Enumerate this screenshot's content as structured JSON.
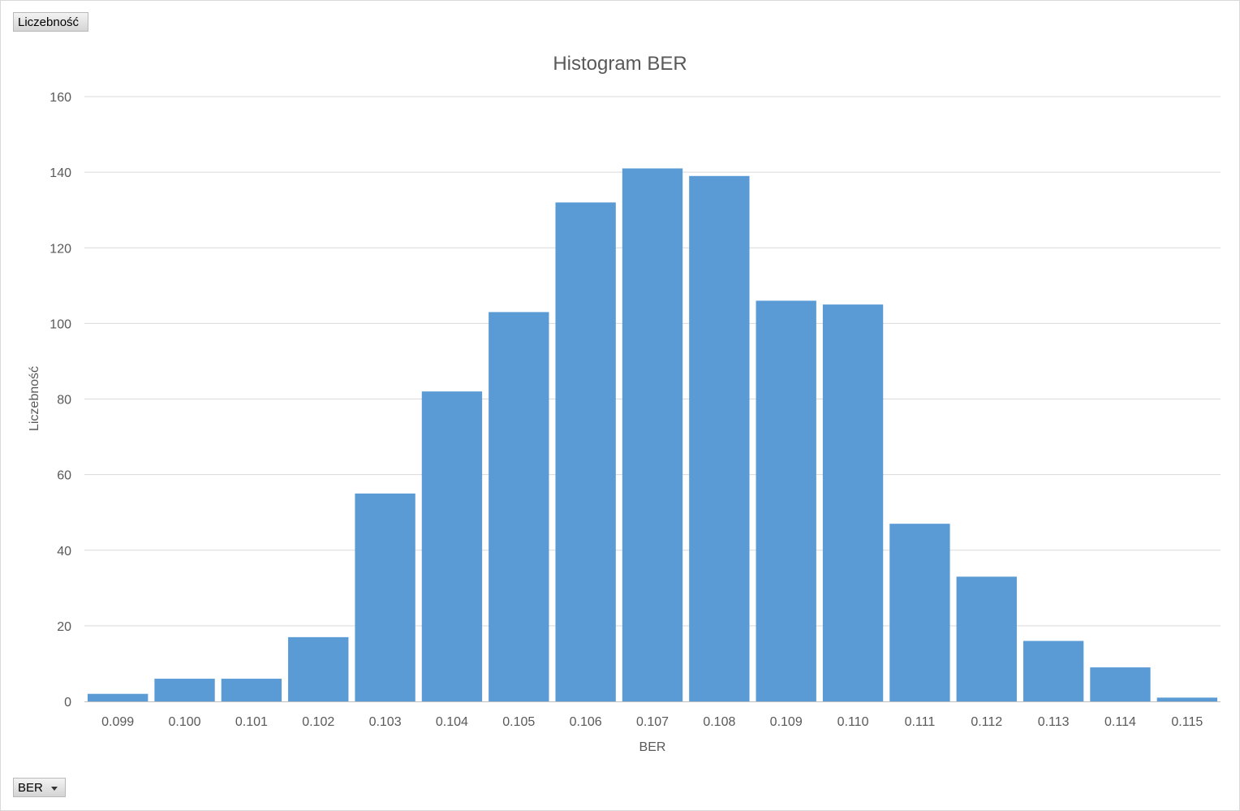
{
  "pivot": {
    "value_field_label": "Liczebność",
    "axis_field_label": "BER"
  },
  "colors": {
    "bar": "#5b9bd5",
    "gridline": "#d9d9d9",
    "axis_line": "#bfbfbf"
  },
  "icons": {
    "dropdown": "chevron-down-icon"
  },
  "chart_data": {
    "type": "bar",
    "title": "Histogram BER",
    "xlabel": "BER",
    "ylabel": "Liczebność",
    "categories": [
      "0.099",
      "0.100",
      "0.101",
      "0.102",
      "0.103",
      "0.104",
      "0.105",
      "0.106",
      "0.107",
      "0.108",
      "0.109",
      "0.110",
      "0.111",
      "0.112",
      "0.113",
      "0.114",
      "0.115"
    ],
    "values": [
      2,
      6,
      6,
      17,
      55,
      82,
      103,
      132,
      141,
      139,
      106,
      105,
      47,
      33,
      16,
      9,
      1
    ],
    "ylim": [
      0,
      160
    ],
    "yticks": [
      "0",
      "20",
      "40",
      "60",
      "80",
      "100",
      "120",
      "140",
      "160"
    ],
    "grid": true,
    "legend": "none"
  }
}
